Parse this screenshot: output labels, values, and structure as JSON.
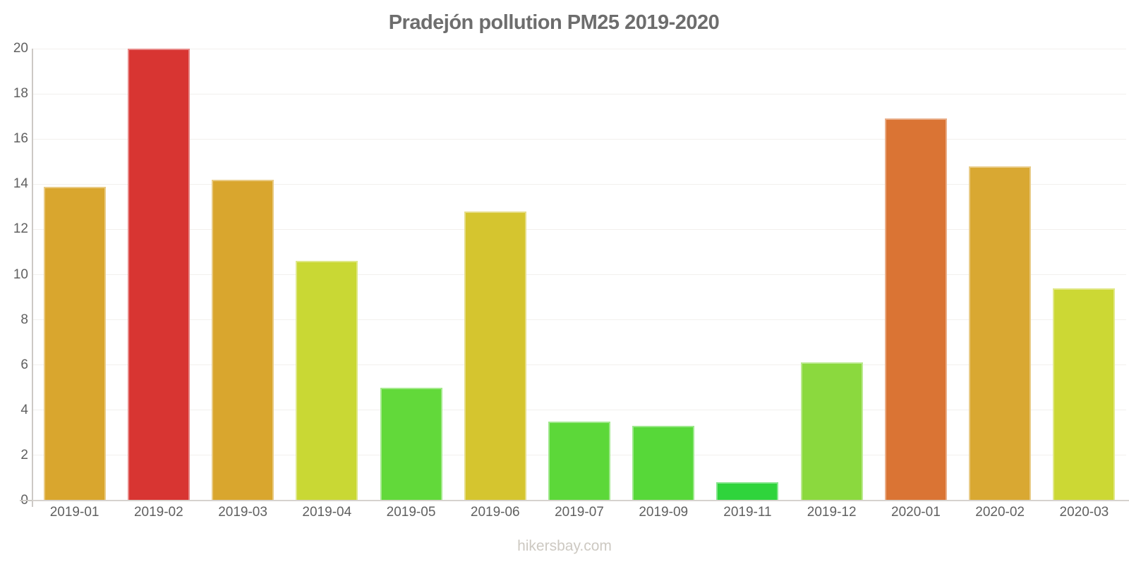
{
  "title": "Pradejón pollution PM25 2019-2020",
  "footer": {
    "text": "hikersbay.com"
  },
  "colors": {
    "title_text": "#6d6d6d",
    "tick_text": "#606060",
    "axis_line": "#ccc9c5",
    "baseline": "#d6d2ce",
    "gridline": "#f2f0ed",
    "watermark_text": "#cdc9c2",
    "background": "#ffffff"
  },
  "chart_data": {
    "type": "bar",
    "title": "Pradejón pollution PM25 2019-2020",
    "xlabel": "",
    "ylabel": "",
    "ylim": [
      0,
      20
    ],
    "yticks": [
      0,
      2,
      4,
      6,
      8,
      10,
      12,
      14,
      16,
      18,
      20
    ],
    "grid": "horizontal",
    "legend": "none",
    "categories": [
      "2019-01",
      "2019-02",
      "2019-03",
      "2019-04",
      "2019-05",
      "2019-06",
      "2019-07",
      "2019-09",
      "2019-11",
      "2019-12",
      "2020-01",
      "2020-02",
      "2020-03"
    ],
    "values": [
      13.9,
      20.0,
      14.2,
      10.6,
      5.0,
      12.8,
      3.5,
      3.3,
      0.8,
      6.1,
      16.9,
      14.8,
      9.4
    ],
    "bar_colors": [
      "#d9a62e",
      "#d83532",
      "#d9a62e",
      "#c9d834",
      "#62d93a",
      "#d5c52f",
      "#5cd839",
      "#57d839",
      "#2fd43c",
      "#8bd93e",
      "#da7434",
      "#d9a832",
      "#ccd834"
    ]
  }
}
